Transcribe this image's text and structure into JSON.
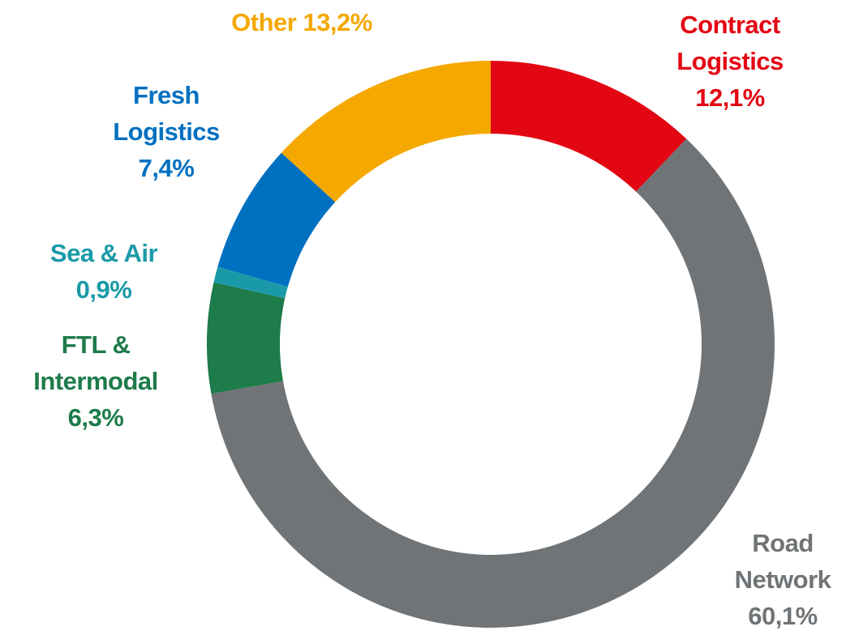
{
  "chart_data": {
    "type": "donut",
    "categories": [
      "Contract Logistics",
      "Road Network",
      "FTL & Intermodal",
      "Sea & Air",
      "Fresh Logistics",
      "Other"
    ],
    "values": [
      12.1,
      60.1,
      6.3,
      0.9,
      7.4,
      13.2
    ],
    "value_labels": [
      "12,1%",
      "60,1%",
      "6,3%",
      "0,9%",
      "7,4%",
      "13,2%"
    ],
    "colors": [
      "#e30613",
      "#707477",
      "#1e7b4a",
      "#1a9aa8",
      "#0070c0",
      "#f5a800"
    ]
  }
}
